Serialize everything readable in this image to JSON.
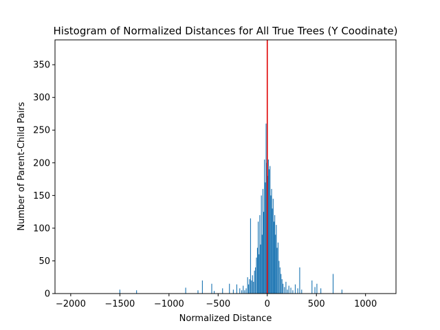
{
  "chart_data": {
    "type": "bar",
    "title": "Histogram of Normalized Distances for All True Trees (Y Coodinate)",
    "xlabel": "Normalized Distance",
    "ylabel": "Number of Parent-Child Pairs",
    "xlim": [
      -2160,
      1310
    ],
    "ylim": [
      0,
      388
    ],
    "xticks": [
      -2000,
      -1500,
      -1000,
      -500,
      0,
      500,
      1000
    ],
    "yticks": [
      0,
      50,
      100,
      150,
      200,
      250,
      300,
      350
    ],
    "bar_color": "#1f77b4",
    "reference_line": {
      "x": 0,
      "color": "#e00000"
    },
    "grid": false,
    "bins": [
      {
        "x": -1500,
        "y": 6
      },
      {
        "x": -1330,
        "y": 5
      },
      {
        "x": -830,
        "y": 9
      },
      {
        "x": -705,
        "y": 5
      },
      {
        "x": -660,
        "y": 20
      },
      {
        "x": -565,
        "y": 15
      },
      {
        "x": -540,
        "y": 4
      },
      {
        "x": -455,
        "y": 8
      },
      {
        "x": -385,
        "y": 15
      },
      {
        "x": -345,
        "y": 6
      },
      {
        "x": -310,
        "y": 14
      },
      {
        "x": -280,
        "y": 8
      },
      {
        "x": -260,
        "y": 5
      },
      {
        "x": -245,
        "y": 12
      },
      {
        "x": -230,
        "y": 5
      },
      {
        "x": -215,
        "y": 8
      },
      {
        "x": -200,
        "y": 25
      },
      {
        "x": -190,
        "y": 14
      },
      {
        "x": -180,
        "y": 22
      },
      {
        "x": -170,
        "y": 115
      },
      {
        "x": -160,
        "y": 20
      },
      {
        "x": -150,
        "y": 28
      },
      {
        "x": -140,
        "y": 18
      },
      {
        "x": -130,
        "y": 35
      },
      {
        "x": -120,
        "y": 40
      },
      {
        "x": -110,
        "y": 55
      },
      {
        "x": -100,
        "y": 70
      },
      {
        "x": -92,
        "y": 110
      },
      {
        "x": -84,
        "y": 60
      },
      {
        "x": -76,
        "y": 120
      },
      {
        "x": -68,
        "y": 75
      },
      {
        "x": -60,
        "y": 150
      },
      {
        "x": -52,
        "y": 90
      },
      {
        "x": -44,
        "y": 160
      },
      {
        "x": -36,
        "y": 125
      },
      {
        "x": -28,
        "y": 205
      },
      {
        "x": -20,
        "y": 170
      },
      {
        "x": -12,
        "y": 260
      },
      {
        "x": -4,
        "y": 200
      },
      {
        "x": 4,
        "y": 180
      },
      {
        "x": 12,
        "y": 205
      },
      {
        "x": 20,
        "y": 190
      },
      {
        "x": 28,
        "y": 195
      },
      {
        "x": 36,
        "y": 150
      },
      {
        "x": 44,
        "y": 160
      },
      {
        "x": 52,
        "y": 130
      },
      {
        "x": 60,
        "y": 145
      },
      {
        "x": 68,
        "y": 110
      },
      {
        "x": 76,
        "y": 120
      },
      {
        "x": 84,
        "y": 90
      },
      {
        "x": 92,
        "y": 105
      },
      {
        "x": 100,
        "y": 70
      },
      {
        "x": 110,
        "y": 78
      },
      {
        "x": 120,
        "y": 50
      },
      {
        "x": 130,
        "y": 40
      },
      {
        "x": 140,
        "y": 30
      },
      {
        "x": 150,
        "y": 22
      },
      {
        "x": 160,
        "y": 15
      },
      {
        "x": 175,
        "y": 10
      },
      {
        "x": 190,
        "y": 18
      },
      {
        "x": 205,
        "y": 6
      },
      {
        "x": 220,
        "y": 12
      },
      {
        "x": 240,
        "y": 9
      },
      {
        "x": 260,
        "y": 5
      },
      {
        "x": 285,
        "y": 14
      },
      {
        "x": 310,
        "y": 8
      },
      {
        "x": 330,
        "y": 40
      },
      {
        "x": 350,
        "y": 6
      },
      {
        "x": 455,
        "y": 20
      },
      {
        "x": 485,
        "y": 10
      },
      {
        "x": 505,
        "y": 15
      },
      {
        "x": 545,
        "y": 8
      },
      {
        "x": 670,
        "y": 30
      },
      {
        "x": 760,
        "y": 6
      }
    ]
  }
}
